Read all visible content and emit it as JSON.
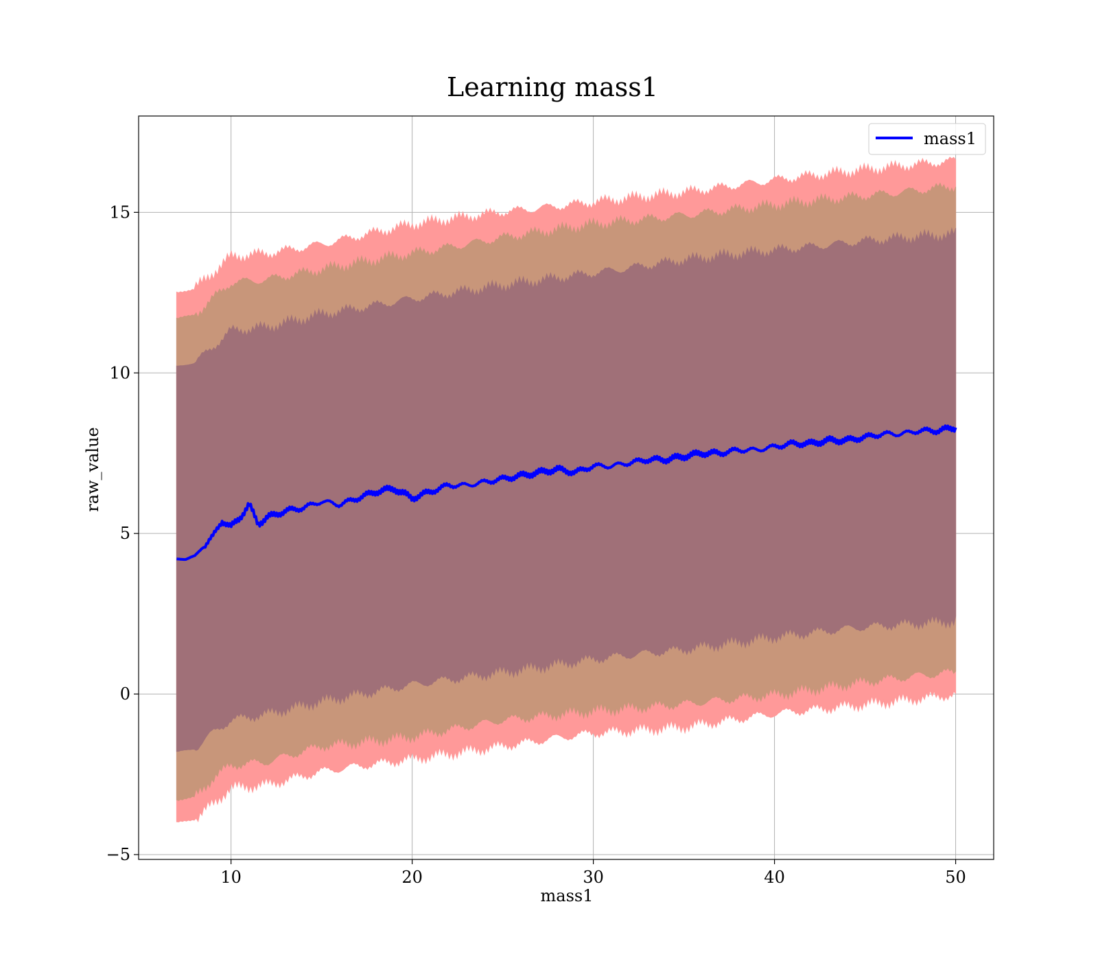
{
  "chart_data": {
    "type": "line",
    "title": "Learning mass1",
    "xlabel": "mass1",
    "ylabel": "raw_value",
    "xlim": [
      4.9,
      52.1
    ],
    "ylim": [
      -5.15,
      18.0
    ],
    "x_ticks": [
      10,
      20,
      30,
      40,
      50
    ],
    "y_ticks": [
      -5,
      0,
      5,
      10,
      15
    ],
    "x_tick_labels": [
      "10",
      "20",
      "30",
      "40",
      "50"
    ],
    "y_tick_labels": [
      "−5",
      "0",
      "5",
      "10",
      "15"
    ],
    "grid": true,
    "legend": {
      "position": "top-right",
      "entries": [
        "mass1"
      ]
    },
    "colors": {
      "line": "#0000ff",
      "band_outer": "#ff9999",
      "band_middle": "#c8967a",
      "band_inner": "#a07078",
      "grid": "#b0b0b0"
    },
    "bands": [
      {
        "level": "outer",
        "x": [
          7,
          8,
          9,
          10,
          12,
          15,
          20,
          25,
          30,
          35,
          40,
          45,
          50
        ],
        "lower": [
          -4.0,
          -3.9,
          -3.4,
          -2.9,
          -2.8,
          -2.4,
          -2.0,
          -1.6,
          -1.2,
          -1.0,
          -0.6,
          -0.3,
          0.0
        ],
        "upper": [
          12.5,
          12.6,
          13.1,
          13.6,
          13.7,
          14.0,
          14.6,
          15.0,
          15.3,
          15.6,
          16.0,
          16.3,
          16.6
        ]
      },
      {
        "level": "middle",
        "x": [
          7,
          8,
          9,
          10,
          12,
          15,
          20,
          25,
          30,
          35,
          40,
          45,
          50
        ],
        "lower": [
          -3.3,
          -3.2,
          -2.6,
          -2.2,
          -2.1,
          -1.6,
          -1.3,
          -0.8,
          -0.5,
          -0.3,
          0.0,
          0.4,
          0.7
        ],
        "upper": [
          11.7,
          11.8,
          12.3,
          12.8,
          12.9,
          13.2,
          13.7,
          14.2,
          14.6,
          14.9,
          15.2,
          15.5,
          15.8
        ]
      },
      {
        "level": "inner",
        "x": [
          7,
          8,
          9,
          10,
          12,
          15,
          20,
          25,
          30,
          35,
          40,
          45,
          50
        ],
        "lower": [
          -1.8,
          -1.7,
          -1.2,
          -0.8,
          -0.6,
          -0.2,
          0.3,
          0.7,
          1.1,
          1.4,
          1.8,
          2.1,
          2.3
        ],
        "upper": [
          10.2,
          10.3,
          10.8,
          11.3,
          11.4,
          11.8,
          12.3,
          12.7,
          13.1,
          13.5,
          13.8,
          14.1,
          14.3
        ]
      }
    ],
    "series": [
      {
        "name": "mass1",
        "x": [
          7,
          7.5,
          8,
          8.5,
          9,
          9.5,
          10,
          10.5,
          11,
          11.5,
          12,
          13,
          14,
          15,
          16,
          17,
          18,
          19,
          20,
          21,
          22,
          23,
          24,
          25,
          26,
          27,
          28,
          29,
          30,
          31,
          32,
          33,
          34,
          35,
          36,
          37,
          38,
          39,
          40,
          41,
          42,
          43,
          44,
          45,
          46,
          47,
          48,
          49,
          50
        ],
        "y": [
          4.2,
          4.2,
          4.3,
          4.6,
          4.9,
          5.4,
          5.2,
          5.5,
          5.9,
          5.3,
          5.5,
          5.7,
          5.8,
          6.0,
          5.9,
          6.1,
          6.3,
          6.4,
          6.1,
          6.3,
          6.5,
          6.5,
          6.6,
          6.7,
          6.8,
          6.9,
          7.0,
          6.9,
          7.1,
          7.1,
          7.2,
          7.3,
          7.3,
          7.4,
          7.5,
          7.5,
          7.6,
          7.6,
          7.7,
          7.8,
          7.8,
          7.9,
          7.9,
          8.0,
          8.1,
          8.1,
          8.2,
          8.2,
          8.3
        ]
      }
    ]
  }
}
